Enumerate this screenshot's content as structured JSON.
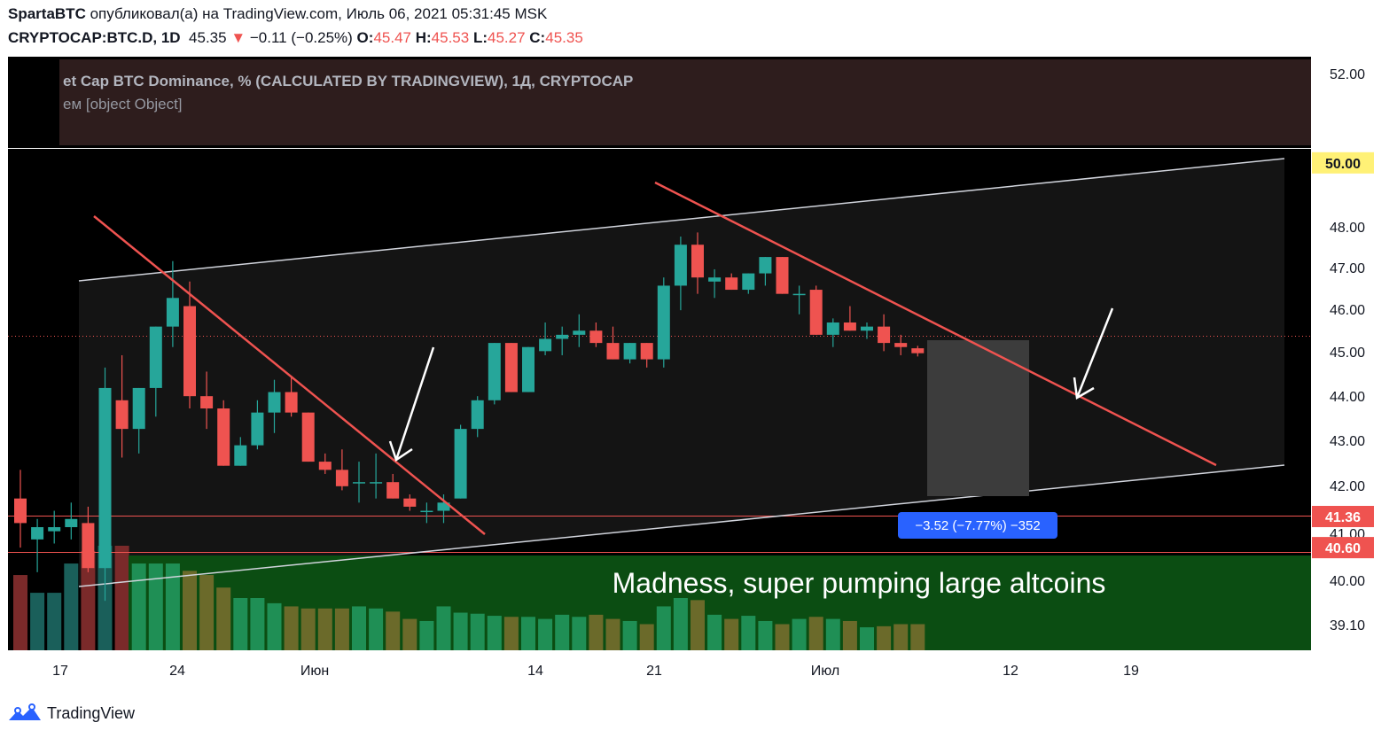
{
  "header": {
    "author": "SpartaBTC",
    "published_text": "опубликовал(а) на TradingView.com, Июль 06, 2021 05:31:45 MSK",
    "symbol": "CRYPTOCAP:BTC.D, 1D",
    "last": "45.35",
    "arrow": "▼",
    "change": "−0.11 (−0.25%)",
    "o_label": "O:",
    "o_value": "45.47",
    "h_label": "H:",
    "h_value": "45.53",
    "l_label": "L:",
    "l_value": "45.27",
    "c_label": "C:",
    "c_value": "45.35"
  },
  "legend": {
    "line1": "et Cap BTC Dominance, % (CALCULATED BY TRADINGVIEW), 1Д, CRYPTOCAP",
    "line2": "ем [object Object]"
  },
  "price_scale": {
    "ticks": [
      "52.00",
      "48.00",
      "47.00",
      "46.00",
      "45.00",
      "44.00",
      "43.00",
      "42.00",
      "41.00",
      "40.00",
      "39.10"
    ],
    "badges": [
      {
        "value": "50.00",
        "color": "#fff176"
      },
      {
        "value": "41.36",
        "color": "#ef5350"
      },
      {
        "value": "40.60",
        "color": "#ef5350"
      }
    ]
  },
  "time_scale": {
    "ticks": [
      "17",
      "24",
      "Июн",
      "14",
      "21",
      "Июл",
      "12",
      "19"
    ]
  },
  "measure_label": "−3.52 (−7.77%) −352",
  "annotation_text": "Madness, super pumping large altcoins",
  "footer": {
    "brand": "TradingView",
    "logo_icon": "tradingview-logo-icon"
  },
  "colors": {
    "up": "#26a69a",
    "down": "#ef5350",
    "background": "#000000",
    "trendline": "#ef5350",
    "channel": "#d1d4dc",
    "green_zone": "#0b4d12",
    "measure": "#2962ff"
  },
  "chart_data": {
    "type": "candlestick",
    "series": [
      {
        "o": 41.8,
        "h": 42.5,
        "l": 40.6,
        "c": 41.2
      },
      {
        "o": 40.8,
        "h": 41.3,
        "l": 40.0,
        "c": 41.1
      },
      {
        "o": 41.0,
        "h": 41.5,
        "l": 40.7,
        "c": 41.1
      },
      {
        "o": 41.1,
        "h": 41.7,
        "l": 40.8,
        "c": 41.3
      },
      {
        "o": 41.2,
        "h": 41.6,
        "l": 40.0,
        "c": 40.1
      },
      {
        "o": 40.1,
        "h": 45.0,
        "l": 39.3,
        "c": 44.5
      },
      {
        "o": 44.2,
        "h": 45.3,
        "l": 42.8,
        "c": 43.5
      },
      {
        "o": 43.5,
        "h": 44.5,
        "l": 42.9,
        "c": 44.5
      },
      {
        "o": 44.5,
        "h": 46.0,
        "l": 43.8,
        "c": 46.0
      },
      {
        "o": 46.0,
        "h": 47.6,
        "l": 45.5,
        "c": 46.7
      },
      {
        "o": 46.5,
        "h": 47.1,
        "l": 44.0,
        "c": 44.3
      },
      {
        "o": 44.3,
        "h": 44.9,
        "l": 43.5,
        "c": 44.0
      },
      {
        "o": 44.0,
        "h": 44.2,
        "l": 42.6,
        "c": 42.6
      },
      {
        "o": 42.6,
        "h": 43.3,
        "l": 42.6,
        "c": 43.1
      },
      {
        "o": 43.1,
        "h": 44.2,
        "l": 43.0,
        "c": 43.9
      },
      {
        "o": 43.9,
        "h": 44.7,
        "l": 43.4,
        "c": 44.4
      },
      {
        "o": 44.4,
        "h": 44.8,
        "l": 43.8,
        "c": 43.9
      },
      {
        "o": 43.9,
        "h": 43.9,
        "l": 42.7,
        "c": 42.7
      },
      {
        "o": 42.7,
        "h": 42.9,
        "l": 42.4,
        "c": 42.5
      },
      {
        "o": 42.5,
        "h": 43.0,
        "l": 42.0,
        "c": 42.1
      },
      {
        "o": 42.2,
        "h": 42.7,
        "l": 41.7,
        "c": 42.2
      },
      {
        "o": 42.2,
        "h": 42.9,
        "l": 41.8,
        "c": 42.2
      },
      {
        "o": 42.2,
        "h": 42.4,
        "l": 41.8,
        "c": 41.8
      },
      {
        "o": 41.8,
        "h": 41.9,
        "l": 41.5,
        "c": 41.6
      },
      {
        "o": 41.5,
        "h": 41.7,
        "l": 41.2,
        "c": 41.5
      },
      {
        "o": 41.5,
        "h": 41.9,
        "l": 41.2,
        "c": 41.7
      },
      {
        "o": 41.8,
        "h": 43.6,
        "l": 41.8,
        "c": 43.5
      },
      {
        "o": 43.5,
        "h": 44.3,
        "l": 43.3,
        "c": 44.2
      },
      {
        "o": 44.2,
        "h": 45.6,
        "l": 44.1,
        "c": 45.6
      },
      {
        "o": 45.6,
        "h": 45.6,
        "l": 44.4,
        "c": 44.4
      },
      {
        "o": 44.4,
        "h": 45.5,
        "l": 44.4,
        "c": 45.5
      },
      {
        "o": 45.4,
        "h": 46.1,
        "l": 45.3,
        "c": 45.7
      },
      {
        "o": 45.7,
        "h": 46.0,
        "l": 45.3,
        "c": 45.8
      },
      {
        "o": 45.8,
        "h": 46.3,
        "l": 45.5,
        "c": 45.9
      },
      {
        "o": 45.9,
        "h": 46.1,
        "l": 45.5,
        "c": 45.6
      },
      {
        "o": 45.6,
        "h": 46.0,
        "l": 45.2,
        "c": 45.2
      },
      {
        "o": 45.2,
        "h": 45.6,
        "l": 45.1,
        "c": 45.6
      },
      {
        "o": 45.6,
        "h": 45.6,
        "l": 45.0,
        "c": 45.2
      },
      {
        "o": 45.2,
        "h": 47.2,
        "l": 45.0,
        "c": 47.0
      },
      {
        "o": 47.0,
        "h": 48.2,
        "l": 46.4,
        "c": 48.0
      },
      {
        "o": 48.0,
        "h": 48.3,
        "l": 46.8,
        "c": 47.2
      },
      {
        "o": 47.1,
        "h": 47.4,
        "l": 46.7,
        "c": 47.2
      },
      {
        "o": 47.2,
        "h": 47.3,
        "l": 46.9,
        "c": 46.9
      },
      {
        "o": 46.9,
        "h": 47.3,
        "l": 46.8,
        "c": 47.3
      },
      {
        "o": 47.3,
        "h": 47.7,
        "l": 47.0,
        "c": 47.7
      },
      {
        "o": 47.7,
        "h": 47.7,
        "l": 46.8,
        "c": 46.8
      },
      {
        "o": 46.8,
        "h": 47.0,
        "l": 46.3,
        "c": 46.8
      },
      {
        "o": 46.9,
        "h": 47.0,
        "l": 45.8,
        "c": 45.8
      },
      {
        "o": 45.8,
        "h": 46.2,
        "l": 45.5,
        "c": 46.1
      },
      {
        "o": 46.1,
        "h": 46.5,
        "l": 45.9,
        "c": 45.9
      },
      {
        "o": 45.9,
        "h": 46.1,
        "l": 45.7,
        "c": 46.0
      },
      {
        "o": 46.0,
        "h": 46.3,
        "l": 45.4,
        "c": 45.6
      },
      {
        "o": 45.6,
        "h": 45.8,
        "l": 45.3,
        "c": 45.5
      },
      {
        "o": 45.47,
        "h": 45.53,
        "l": 45.27,
        "c": 45.35
      }
    ],
    "volume": [
      72,
      55,
      55,
      83,
      95,
      100,
      100,
      83,
      83,
      83,
      76,
      72,
      60,
      50,
      50,
      45,
      42,
      40,
      40,
      40,
      42,
      40,
      37,
      30,
      28,
      42,
      36,
      35,
      33,
      32,
      32,
      30,
      34,
      32,
      34,
      30,
      28,
      25,
      42,
      50,
      48,
      34,
      30,
      33,
      28,
      25,
      30,
      32,
      30,
      28,
      22,
      23,
      25,
      25
    ],
    "ylim": [
      38.7,
      52.5
    ],
    "levels": [
      50.0,
      41.36,
      40.6
    ]
  }
}
